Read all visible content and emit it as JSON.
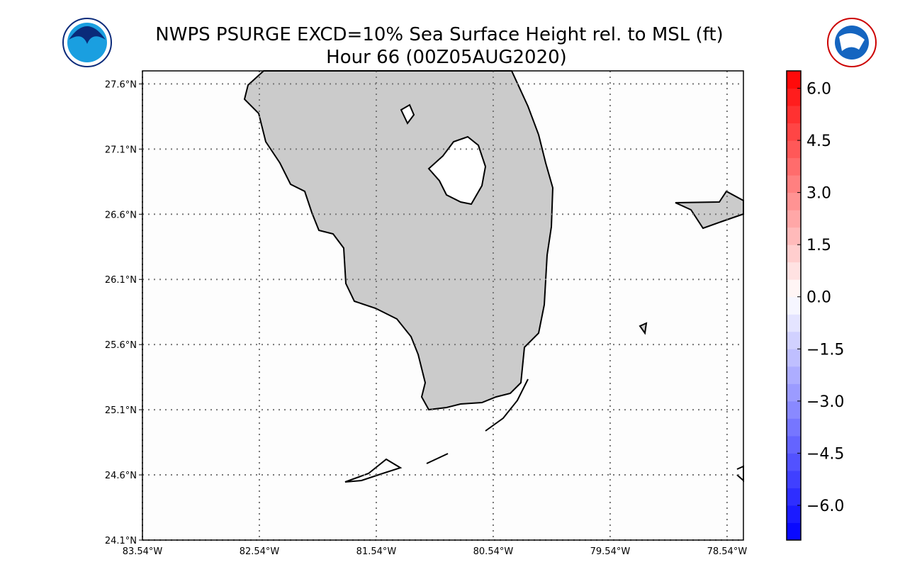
{
  "map": {
    "title": "NWPS PSURGE EXCD=10% Sea Surface Height rel. to MSL (ft)",
    "subtitle": "Hour 66 (00Z05AUG2020)",
    "ylim": [
      24.1,
      27.7
    ],
    "yticks": [
      {
        "value": 24.1,
        "label": "24.1°N"
      },
      {
        "value": 24.6,
        "label": "24.6°N"
      },
      {
        "value": 25.1,
        "label": "25.1°N"
      },
      {
        "value": 25.6,
        "label": "25.6°N"
      },
      {
        "value": 26.1,
        "label": "26.1°N"
      },
      {
        "value": 26.6,
        "label": "26.6°N"
      },
      {
        "value": 27.1,
        "label": "27.1°N"
      },
      {
        "value": 27.6,
        "label": "27.6°N"
      }
    ],
    "xlim": [
      -83.54,
      -78.4
    ],
    "xticks": [
      {
        "value": -83.54,
        "label": "83.54°W"
      },
      {
        "value": -82.54,
        "label": "82.54°W"
      },
      {
        "value": -81.54,
        "label": "81.54°W"
      },
      {
        "value": -80.54,
        "label": "80.54°W"
      },
      {
        "value": -79.54,
        "label": "79.54°W"
      },
      {
        "value": -78.54,
        "label": "78.54°W"
      }
    ],
    "colorbar": {
      "lim": [
        -7,
        6.5
      ],
      "step": 0.5,
      "ticks": [
        {
          "value": 6,
          "label": "6.0"
        },
        {
          "value": 4.5,
          "label": "4.5"
        },
        {
          "value": 3,
          "label": "3.0"
        },
        {
          "value": 1.5,
          "label": "1.5"
        },
        {
          "value": 0,
          "label": "0.0"
        },
        {
          "value": -1.5,
          "label": "−1.5"
        },
        {
          "value": -3,
          "label": "−3.0"
        },
        {
          "value": -4.5,
          "label": "−4.5"
        },
        {
          "value": -6,
          "label": "−6.0"
        }
      ]
    }
  }
}
